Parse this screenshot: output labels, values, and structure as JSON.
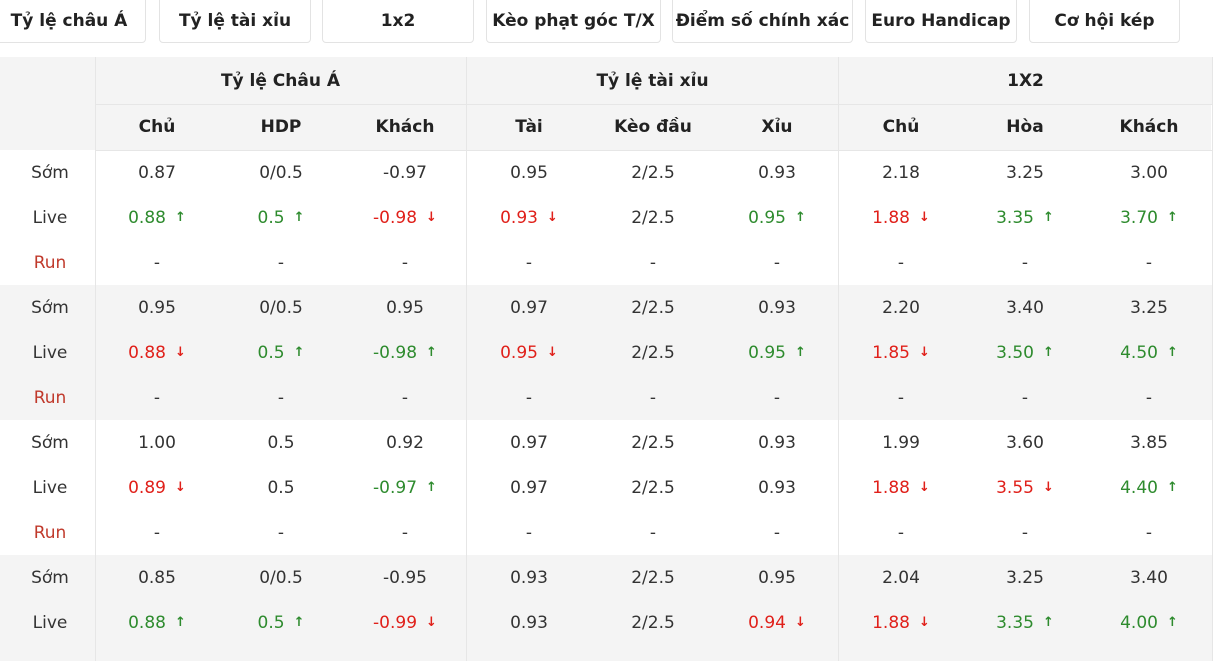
{
  "tabs": [
    "Tỷ lệ châu Á",
    "Tỷ lệ tài xỉu",
    "1x2",
    "Kèo phạt góc T/X",
    "Điểm số chính xác",
    "Euro Handicap",
    "Cơ hội kép"
  ],
  "groups_header": [
    "Tỷ lệ Châu Á",
    "Tỷ lệ tài xỉu",
    "1X2"
  ],
  "columns": [
    "Chủ",
    "HDP",
    "Khách",
    "Tài",
    "Kèo đầu",
    "Xỉu",
    "Chủ",
    "Hòa",
    "Khách"
  ],
  "row_labels": {
    "early": "Sớm",
    "live": "Live",
    "run": "Run"
  },
  "colors": {
    "up": "#2e8b2e",
    "down": "#e0201a",
    "run": "#c0392b",
    "add": "#2aa52a"
  },
  "icons": {
    "up": "arrow-up-icon",
    "down": "arrow-down-icon",
    "add": "plus-icon"
  },
  "groups": [
    {
      "early": [
        "0.87",
        "0/0.5",
        "-0.97",
        "0.95",
        "2/2.5",
        "0.93",
        "2.18",
        "3.25",
        "3.00"
      ],
      "live": [
        {
          "v": "0.88",
          "t": "up"
        },
        {
          "v": "0.5",
          "t": "up"
        },
        {
          "v": "-0.98",
          "t": "down"
        },
        {
          "v": "0.93",
          "t": "down"
        },
        {
          "v": "2/2.5",
          "t": ""
        },
        {
          "v": "0.95",
          "t": "up"
        },
        {
          "v": "1.88",
          "t": "down"
        },
        {
          "v": "3.35",
          "t": "up"
        },
        {
          "v": "3.70",
          "t": "up"
        }
      ],
      "run": [
        "-",
        "-",
        "-",
        "-",
        "-",
        "-",
        "-",
        "-",
        "-"
      ]
    },
    {
      "early": [
        "0.95",
        "0/0.5",
        "0.95",
        "0.97",
        "2/2.5",
        "0.93",
        "2.20",
        "3.40",
        "3.25"
      ],
      "live": [
        {
          "v": "0.88",
          "t": "down"
        },
        {
          "v": "0.5",
          "t": "up"
        },
        {
          "v": "-0.98",
          "t": "up"
        },
        {
          "v": "0.95",
          "t": "down"
        },
        {
          "v": "2/2.5",
          "t": ""
        },
        {
          "v": "0.95",
          "t": "up"
        },
        {
          "v": "1.85",
          "t": "down"
        },
        {
          "v": "3.50",
          "t": "up"
        },
        {
          "v": "4.50",
          "t": "up"
        }
      ],
      "run": [
        "-",
        "-",
        "-",
        "-",
        "-",
        "-",
        "-",
        "-",
        "-"
      ]
    },
    {
      "early": [
        "1.00",
        "0.5",
        "0.92",
        "0.97",
        "2/2.5",
        "0.93",
        "1.99",
        "3.60",
        "3.85"
      ],
      "live": [
        {
          "v": "0.89",
          "t": "down"
        },
        {
          "v": "0.5",
          "t": ""
        },
        {
          "v": "-0.97",
          "t": "up"
        },
        {
          "v": "0.97",
          "t": ""
        },
        {
          "v": "2/2.5",
          "t": ""
        },
        {
          "v": "0.93",
          "t": ""
        },
        {
          "v": "1.88",
          "t": "down"
        },
        {
          "v": "3.55",
          "t": "down"
        },
        {
          "v": "4.40",
          "t": "up"
        }
      ],
      "run": [
        "-",
        "-",
        "-",
        "-",
        "-",
        "-",
        "-",
        "-",
        "-"
      ]
    },
    {
      "early": [
        "0.85",
        "0/0.5",
        "-0.95",
        "0.93",
        "2/2.5",
        "0.95",
        "2.04",
        "3.25",
        "3.40"
      ],
      "live": [
        {
          "v": "0.88",
          "t": "up"
        },
        {
          "v": "0.5",
          "t": "up"
        },
        {
          "v": "-0.99",
          "t": "down"
        },
        {
          "v": "0.93",
          "t": ""
        },
        {
          "v": "2/2.5",
          "t": ""
        },
        {
          "v": "0.94",
          "t": "down"
        },
        {
          "v": "1.88",
          "t": "down"
        },
        {
          "v": "3.35",
          "t": "up"
        },
        {
          "v": "4.00",
          "t": "up"
        }
      ],
      "run": []
    }
  ]
}
